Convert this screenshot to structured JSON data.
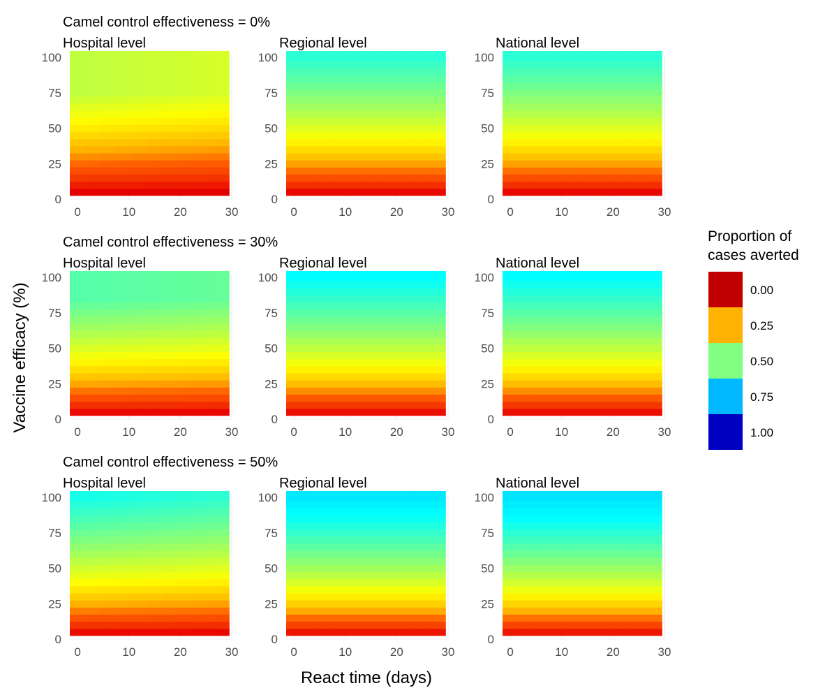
{
  "chart_data": {
    "type": "heatmap",
    "ylabel": "Vaccine efficacy (%)",
    "xlabel": "React time (days)",
    "xlim": [
      -1.5,
      30
    ],
    "ylim": [
      0,
      102
    ],
    "x_ticks": [
      0,
      10,
      20,
      30
    ],
    "y_ticks": [
      0,
      25,
      50,
      75,
      100
    ],
    "grid": true,
    "legend": {
      "title": [
        "Proportion of",
        "cases averted"
      ],
      "placement": "right",
      "entries": [
        {
          "label": "0.00",
          "color": "#C00000"
        },
        {
          "label": "0.25",
          "color": "#FFB300"
        },
        {
          "label": "0.50",
          "color": "#80FF80"
        },
        {
          "label": "0.75",
          "color": "#00B8FF"
        },
        {
          "label": "1.00",
          "color": "#0000C0"
        }
      ]
    },
    "color_scale": [
      [
        0.0,
        "#C00000"
      ],
      [
        0.12,
        "#E80000"
      ],
      [
        0.25,
        "#FF6000"
      ],
      [
        0.3,
        "#FFB300"
      ],
      [
        0.38,
        "#FFFF00"
      ],
      [
        0.5,
        "#80FF80"
      ],
      [
        0.62,
        "#00FFFF"
      ],
      [
        0.75,
        "#00B8FF"
      ],
      [
        1.0,
        "#0000C0"
      ]
    ],
    "row_titles": [
      "Camel control effectiveness = 0%",
      "Camel control effectiveness = 30%",
      "Camel control effectiveness = 50%"
    ],
    "column_titles": [
      "Hospital level",
      "Regional level",
      "National level"
    ],
    "x_values": [
      0,
      3,
      6,
      9,
      12,
      15,
      18,
      21,
      24,
      27,
      29
    ],
    "y_values": [
      5,
      10,
      15,
      20,
      25,
      30,
      35,
      40,
      45,
      50,
      55,
      60,
      65,
      70,
      75,
      80,
      85,
      90,
      95,
      100
    ],
    "panels": [
      {
        "row": 0,
        "col": 0,
        "sat_efficacy": 75,
        "max_value": 0.44,
        "react_decay": 0.05
      },
      {
        "row": 0,
        "col": 1,
        "sat_efficacy": 100,
        "max_value": 0.58,
        "react_decay": 0.0
      },
      {
        "row": 0,
        "col": 2,
        "sat_efficacy": 100,
        "max_value": 0.58,
        "react_decay": 0.0
      },
      {
        "row": 1,
        "col": 0,
        "sat_efficacy": 85,
        "max_value": 0.54,
        "react_decay": 0.03
      },
      {
        "row": 1,
        "col": 1,
        "sat_efficacy": 100,
        "max_value": 0.62,
        "react_decay": 0.0
      },
      {
        "row": 1,
        "col": 2,
        "sat_efficacy": 100,
        "max_value": 0.62,
        "react_decay": 0.0
      },
      {
        "row": 2,
        "col": 0,
        "sat_efficacy": 100,
        "max_value": 0.6,
        "react_decay": 0.04
      },
      {
        "row": 2,
        "col": 1,
        "sat_efficacy": 100,
        "max_value": 0.66,
        "react_decay": 0.0
      },
      {
        "row": 2,
        "col": 2,
        "sat_efficacy": 100,
        "max_value": 0.67,
        "react_decay": 0.0
      }
    ]
  }
}
